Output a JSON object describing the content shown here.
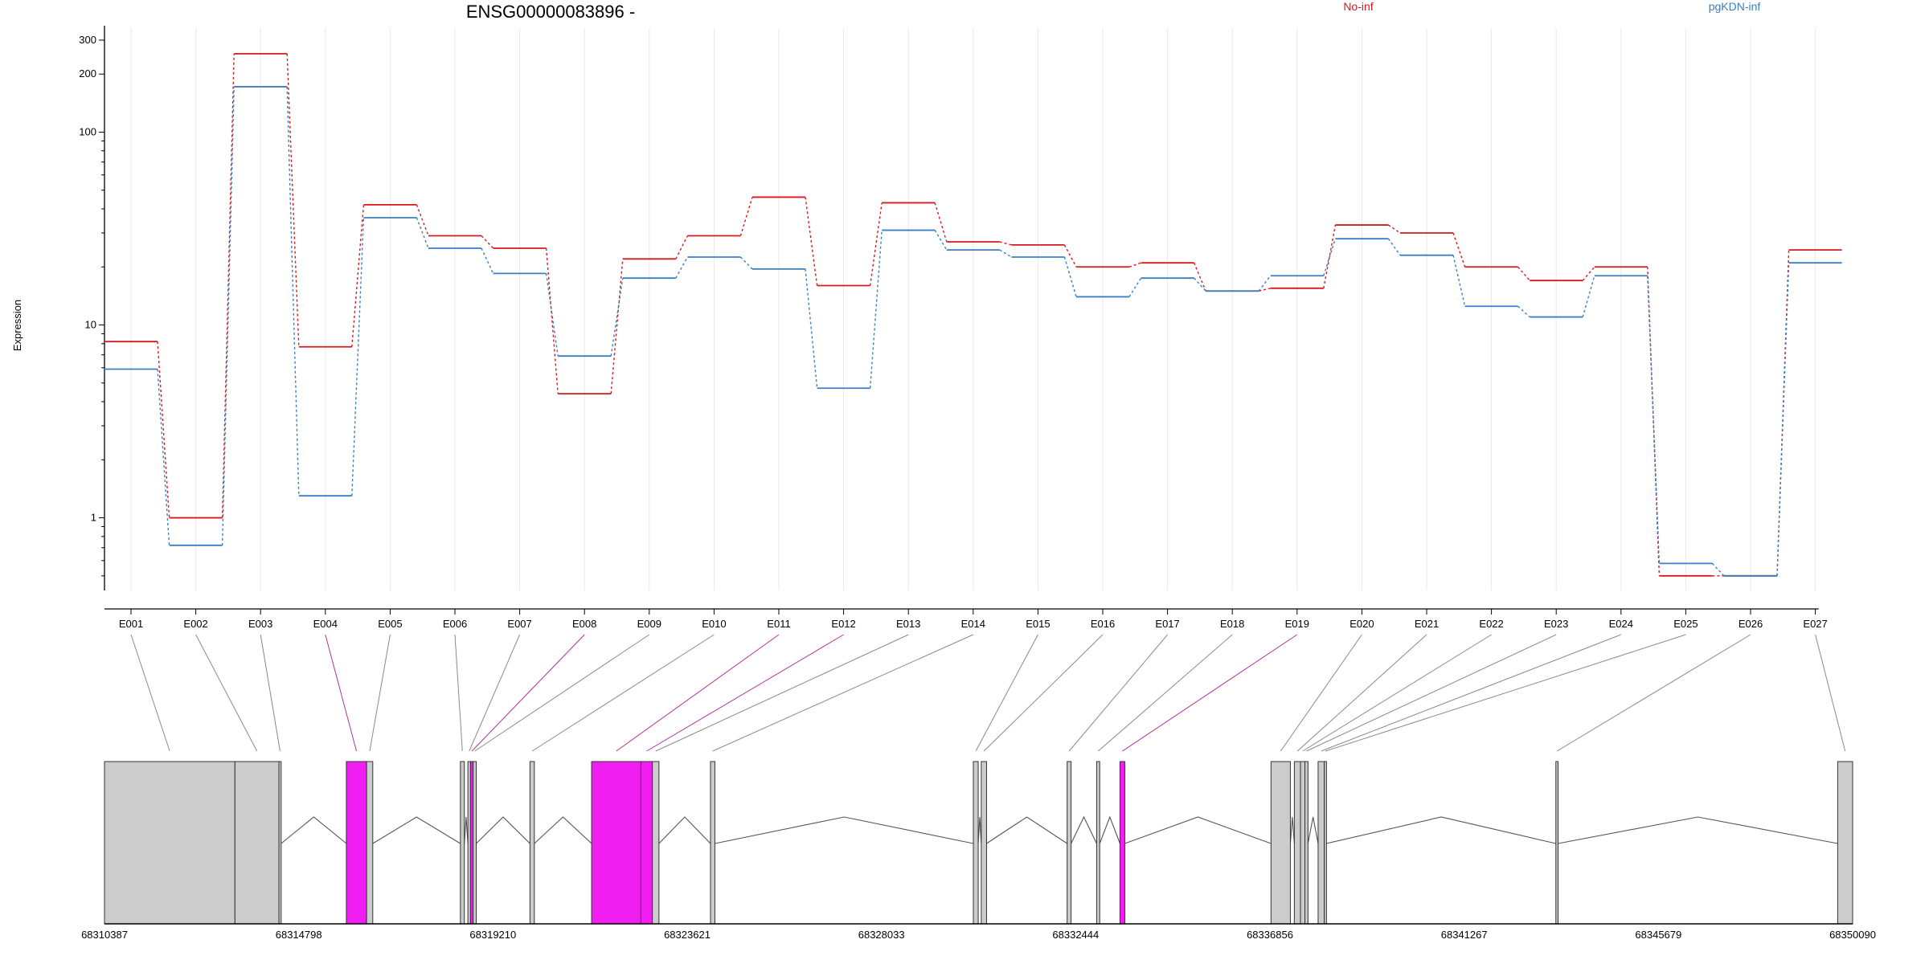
{
  "title": "ENSG00000083896 -",
  "ylabel": "Expression",
  "legend": [
    {
      "name": "No-inf",
      "color": "#d7191c"
    },
    {
      "name": "pgKDN-inf",
      "color": "#3a7fc0"
    }
  ],
  "colors": {
    "exon_normal": "#cccccc",
    "exon_highlight": "#f01ef0",
    "connector_normal": "#8a8a8a",
    "connector_highlight": "#b0339a",
    "grid": "#e9e9e9"
  },
  "chart_data": {
    "type": "line",
    "scale": "log",
    "ylim": [
      0.42,
      330
    ],
    "yticks": [
      1,
      10,
      100,
      200,
      300
    ],
    "yticklabels": [
      "1",
      "10",
      "100",
      "200",
      "300"
    ],
    "categories": [
      "E001",
      "E002",
      "E003",
      "E004",
      "E005",
      "E006",
      "E007",
      "E008",
      "E009",
      "E010",
      "E011",
      "E012",
      "E013",
      "E014",
      "E015",
      "E016",
      "E017",
      "E018",
      "E019",
      "E020",
      "E021",
      "E022",
      "E023",
      "E024",
      "E025",
      "E026",
      "E027"
    ],
    "series": [
      {
        "name": "No-inf",
        "values": [
          8.2,
          1.0,
          255,
          7.7,
          42,
          29,
          25,
          4.4,
          22,
          29,
          46,
          16,
          43,
          27,
          26,
          20,
          21,
          15,
          15.5,
          33,
          30,
          20,
          17,
          20,
          0.5,
          0.5,
          24.5
        ]
      },
      {
        "name": "pgKDN-inf",
        "values": [
          5.9,
          0.72,
          172,
          1.3,
          36,
          25,
          18.5,
          6.9,
          17.5,
          22.5,
          19.5,
          4.7,
          31,
          24.5,
          22.5,
          14,
          17.5,
          15,
          18,
          28,
          23,
          12.5,
          11,
          18,
          0.58,
          0.5,
          21
        ]
      }
    ]
  },
  "genome": {
    "start": 68310387,
    "end": 68350090,
    "tick_labels": [
      "68310387",
      "68314798",
      "68319210",
      "68323621",
      "68328033",
      "68332444",
      "68336856",
      "68341267",
      "68345679",
      "68350090"
    ],
    "exons": [
      {
        "id": "E001",
        "start": 68310387,
        "end": 68313350,
        "highlight": false
      },
      {
        "id": "E002",
        "start": 68313350,
        "end": 68314350,
        "highlight": false
      },
      {
        "id": "E003",
        "start": 68314350,
        "end": 68314400,
        "highlight": false
      },
      {
        "id": "E004",
        "start": 68315880,
        "end": 68316340,
        "highlight": true
      },
      {
        "id": "E005",
        "start": 68316340,
        "end": 68316480,
        "highlight": false
      },
      {
        "id": "E006",
        "start": 68318470,
        "end": 68318560,
        "highlight": false
      },
      {
        "id": "E007",
        "start": 68318640,
        "end": 68318700,
        "highlight": false
      },
      {
        "id": "E008",
        "start": 68318700,
        "end": 68318760,
        "highlight": true
      },
      {
        "id": "E009",
        "start": 68318760,
        "end": 68318830,
        "highlight": false
      },
      {
        "id": "E010",
        "start": 68320050,
        "end": 68320150,
        "highlight": false
      },
      {
        "id": "E011",
        "start": 68321450,
        "end": 68322570,
        "highlight": true
      },
      {
        "id": "E012",
        "start": 68322570,
        "end": 68322830,
        "highlight": true
      },
      {
        "id": "E013",
        "start": 68322830,
        "end": 68322980,
        "highlight": false
      },
      {
        "id": "E014",
        "start": 68324150,
        "end": 68324250,
        "highlight": false
      },
      {
        "id": "E015",
        "start": 68330120,
        "end": 68330230,
        "highlight": false
      },
      {
        "id": "E016",
        "start": 68330300,
        "end": 68330420,
        "highlight": false
      },
      {
        "id": "E017",
        "start": 68332250,
        "end": 68332340,
        "highlight": false
      },
      {
        "id": "E018",
        "start": 68332920,
        "end": 68332990,
        "highlight": false
      },
      {
        "id": "E019",
        "start": 68333450,
        "end": 68333560,
        "highlight": true
      },
      {
        "id": "E020",
        "start": 68336880,
        "end": 68337320,
        "highlight": false
      },
      {
        "id": "E021",
        "start": 68337410,
        "end": 68337550,
        "highlight": false
      },
      {
        "id": "E022",
        "start": 68337550,
        "end": 68337650,
        "highlight": false
      },
      {
        "id": "E023",
        "start": 68337650,
        "end": 68337720,
        "highlight": false
      },
      {
        "id": "E024",
        "start": 68337950,
        "end": 68338090,
        "highlight": false
      },
      {
        "id": "E025",
        "start": 68338090,
        "end": 68338140,
        "highlight": false
      },
      {
        "id": "E026",
        "start": 68343350,
        "end": 68343400,
        "highlight": false
      },
      {
        "id": "E027",
        "start": 68349750,
        "end": 68350090,
        "highlight": false
      }
    ],
    "blocks": [
      [
        68310387,
        68314400
      ],
      [
        68315880,
        68316480
      ],
      [
        68318470,
        68318560
      ],
      [
        68318640,
        68318830
      ],
      [
        68320050,
        68320150
      ],
      [
        68321450,
        68322980
      ],
      [
        68324150,
        68324250
      ],
      [
        68330120,
        68330230
      ],
      [
        68330300,
        68330420
      ],
      [
        68332250,
        68332340
      ],
      [
        68332920,
        68332990
      ],
      [
        68333450,
        68333560
      ],
      [
        68336880,
        68337320
      ],
      [
        68337410,
        68337720
      ],
      [
        68337950,
        68338140
      ],
      [
        68343350,
        68343400
      ],
      [
        68349750,
        68350090
      ]
    ]
  }
}
